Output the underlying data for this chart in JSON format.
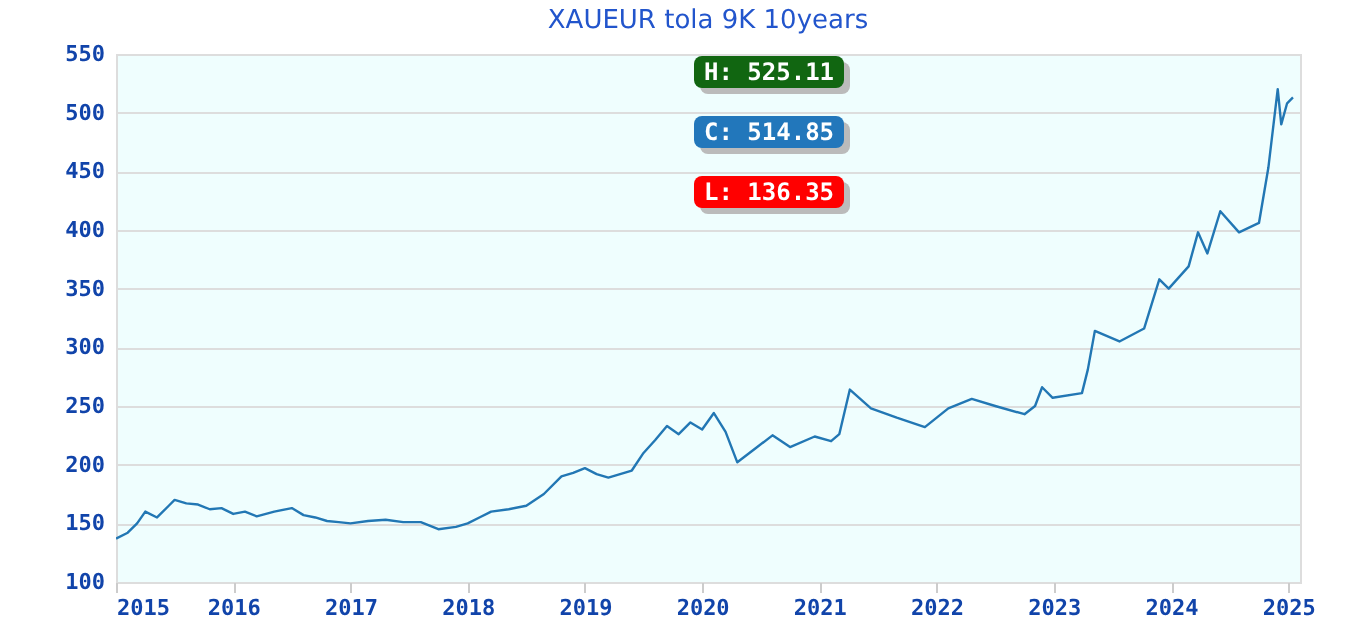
{
  "chart_data": {
    "type": "line",
    "title": "XAUEUR tola 9K 10years",
    "x": [
      2015.0,
      2015.1,
      2015.18,
      2015.25,
      2015.35,
      2015.45,
      2015.5,
      2015.6,
      2015.7,
      2015.8,
      2015.9,
      2016.0,
      2016.1,
      2016.2,
      2016.35,
      2016.5,
      2016.6,
      2016.7,
      2016.8,
      2016.9,
      2017.0,
      2017.15,
      2017.3,
      2017.45,
      2017.6,
      2017.75,
      2017.9,
      2018.0,
      2018.1,
      2018.2,
      2018.35,
      2018.5,
      2018.65,
      2018.8,
      2018.9,
      2019.0,
      2019.1,
      2019.2,
      2019.3,
      2019.4,
      2019.5,
      2019.6,
      2019.7,
      2019.8,
      2019.9,
      2020.0,
      2020.1,
      2020.2,
      2020.3,
      2020.47,
      2020.6,
      2020.75,
      2020.96,
      2021.1,
      2021.17,
      2021.26,
      2021.44,
      2021.66,
      2021.9,
      2022.1,
      2022.3,
      2022.5,
      2022.75,
      2022.84,
      2022.9,
      2022.99,
      2023.24,
      2023.29,
      2023.35,
      2023.56,
      2023.77,
      2023.9,
      2023.98,
      2024.15,
      2024.23,
      2024.31,
      2024.42,
      2024.58,
      2024.75,
      2024.83,
      2024.91,
      2024.94,
      2024.99,
      2025.04
    ],
    "values": [
      137,
      142,
      150,
      160,
      155,
      165,
      170,
      167,
      166,
      162,
      163,
      158,
      160,
      156,
      160,
      163,
      157,
      155,
      152,
      151,
      150,
      152,
      153,
      151,
      151,
      145,
      147,
      150,
      155,
      160,
      162,
      165,
      175,
      190,
      193,
      197,
      192,
      189,
      192,
      195,
      210,
      221,
      233,
      226,
      236,
      230,
      244,
      228,
      202,
      215,
      225,
      215,
      224,
      220,
      226,
      264,
      248,
      240,
      232,
      248,
      256,
      250,
      243,
      250,
      266,
      257,
      261,
      281,
      314,
      305,
      316,
      358,
      350,
      369,
      398,
      380,
      416,
      398,
      406,
      453,
      520,
      490,
      508,
      513
    ],
    "color": "#2277b4",
    "xlim": [
      2015,
      2025.1
    ],
    "xticks": [
      2015,
      2016,
      2017,
      2018,
      2019,
      2020,
      2021,
      2022,
      2023,
      2024,
      2025
    ],
    "ylim": [
      100,
      550
    ],
    "yticks": [
      100,
      150,
      200,
      250,
      300,
      350,
      400,
      450,
      500,
      550
    ],
    "grid": "y",
    "annotations": [
      "H: 525.11",
      "C: 514.85",
      "L: 136.35"
    ]
  }
}
